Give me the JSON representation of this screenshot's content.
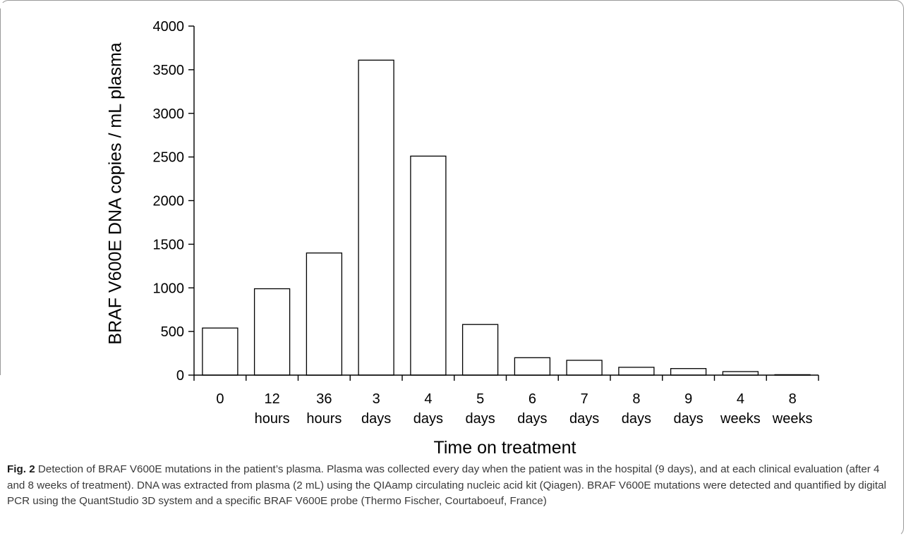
{
  "chart_data": {
    "type": "bar",
    "categories": [
      [
        "0",
        ""
      ],
      [
        "12",
        "hours"
      ],
      [
        "36",
        "hours"
      ],
      [
        "3",
        "days"
      ],
      [
        "4",
        "days"
      ],
      [
        "5",
        "days"
      ],
      [
        "6",
        "days"
      ],
      [
        "7",
        "days"
      ],
      [
        "8",
        "days"
      ],
      [
        "9",
        "days"
      ],
      [
        "4",
        "weeks"
      ],
      [
        "8",
        "weeks"
      ]
    ],
    "values": [
      540,
      990,
      1400,
      3610,
      2510,
      580,
      200,
      170,
      90,
      75,
      40,
      5
    ],
    "xlabel": "Time on treatment",
    "ylabel": "BRAF V600E DNA copies / mL plasma",
    "ylim": [
      0,
      4000
    ],
    "yticks": [
      0,
      500,
      1000,
      1500,
      2000,
      2500,
      3000,
      3500,
      4000
    ],
    "grid": false,
    "bar_fill": "#ffffff",
    "bar_stroke": "#000000"
  },
  "caption": {
    "label": "Fig. 2",
    "text": "Detection of BRAF V600E mutations in the patient’s plasma. Plasma was collected every day when the patient was in the hospital (9 days), and at each clinical evaluation (after 4 and 8 weeks of treatment). DNA was extracted from plasma (2 mL) using the QIAamp circulating nucleic acid kit (Qiagen). BRAF V600E mutations were detected and quantified by digital PCR using the QuantStudio 3D system and a specific BRAF V600E probe (Thermo Fischer, Courtaboeuf, France)"
  }
}
